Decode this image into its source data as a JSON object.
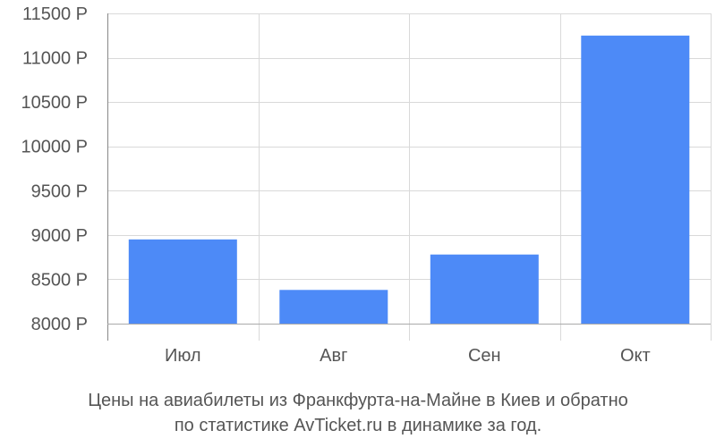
{
  "chart_data": {
    "type": "bar",
    "categories": [
      "Июл",
      "Авг",
      "Сен",
      "Окт"
    ],
    "values": [
      8950,
      8380,
      8780,
      11250
    ],
    "ylim": [
      8000,
      11500
    ],
    "yticks": [
      8000,
      8500,
      9000,
      9500,
      10000,
      10500,
      11000,
      11500
    ],
    "y_tick_labels": [
      "8000 Р",
      "8500 Р",
      "9000 Р",
      "9500 Р",
      "10000 Р",
      "10500 Р",
      "11000 Р",
      "11500 Р"
    ],
    "grid": true,
    "bar_color": "#4d8af7",
    "caption_line1": "Цены на авиабилеты из Франкфурта-на-Майне в Киев и обратно",
    "caption_line2": "по статистике AvTicket.ru в динамике за год."
  }
}
